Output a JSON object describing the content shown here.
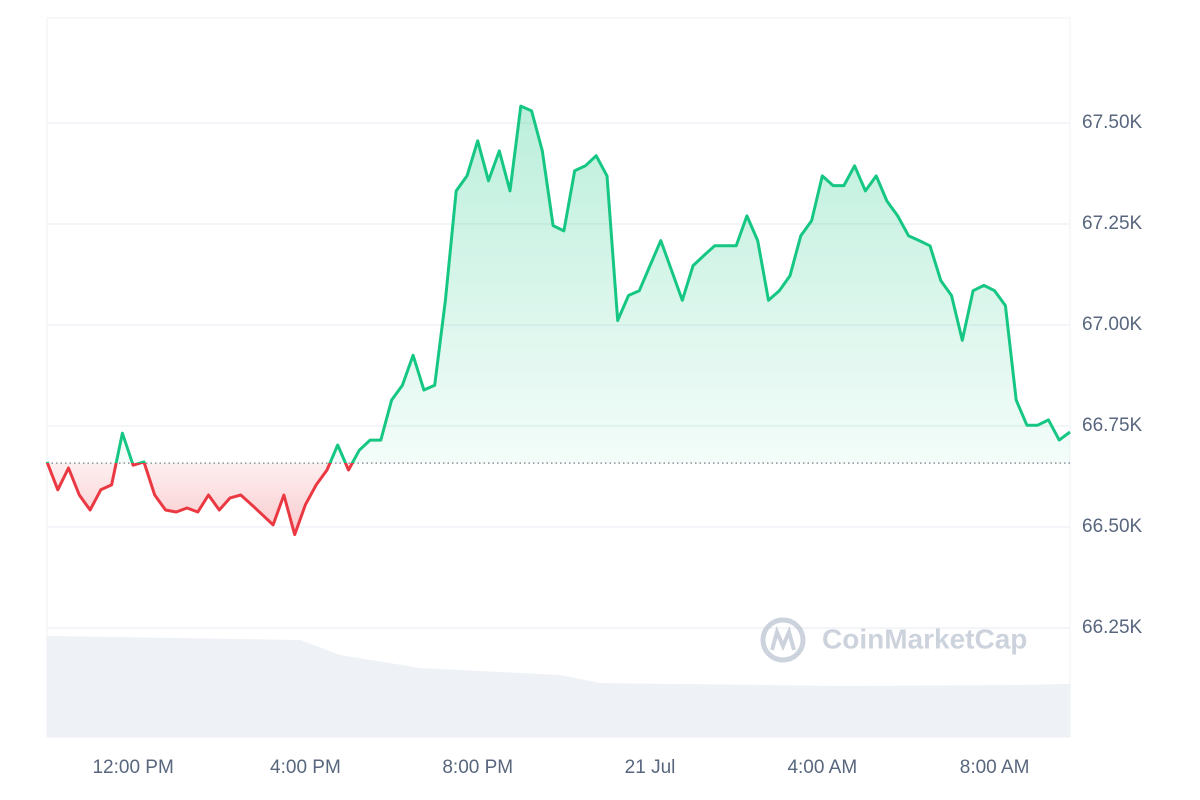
{
  "chart_data": {
    "type": "line",
    "categories": [
      null,
      null,
      null,
      null,
      null,
      null,
      null,
      null,
      "12:00 PM",
      null,
      null,
      null,
      null,
      null,
      null,
      null,
      null,
      null,
      null,
      null,
      null,
      null,
      null,
      null,
      "4:00 PM",
      null,
      null,
      null,
      null,
      null,
      null,
      null,
      null,
      null,
      null,
      null,
      null,
      null,
      null,
      null,
      "8:00 PM",
      null,
      null,
      null,
      null,
      null,
      null,
      null,
      null,
      null,
      null,
      null,
      null,
      null,
      null,
      null,
      "21 Jul",
      null,
      null,
      null,
      null,
      null,
      null,
      null,
      null,
      null,
      null,
      null,
      null,
      null,
      null,
      null,
      "4:00 AM",
      null,
      null,
      null,
      null,
      null,
      null,
      null,
      null,
      null,
      null,
      null,
      null,
      null,
      null,
      null,
      "8:00 AM",
      null,
      null,
      null,
      null,
      null,
      null,
      null
    ],
    "values": [
      66661,
      66592,
      66646,
      66579,
      66542,
      66592,
      66604,
      66732,
      66653,
      66661,
      66579,
      66542,
      66537,
      66547,
      66537,
      66579,
      66542,
      66572,
      66579,
      66555,
      66530,
      66505,
      66579,
      66481,
      66555,
      66604,
      66641,
      66703,
      66641,
      66690,
      66715,
      66715,
      66814,
      66851,
      66925,
      66839,
      66851,
      67061,
      67332,
      67369,
      67456,
      67357,
      67431,
      67332,
      67542,
      67530,
      67431,
      67246,
      67233,
      67382,
      67394,
      67419,
      67369,
      67011,
      67073,
      67085,
      67147,
      67209,
      67135,
      67061,
      67147,
      67172,
      67196,
      67196,
      67196,
      67270,
      67209,
      67061,
      67085,
      67122,
      67221,
      67258,
      67369,
      67345,
      67345,
      67394,
      67332,
      67369,
      67307,
      67270,
      67221,
      67209,
      67196,
      67110,
      67073,
      66962,
      67085,
      67098,
      67085,
      67048,
      66814,
      66752,
      66752,
      66765,
      66715,
      66735
    ],
    "color_up": "#16c784",
    "color_down": "#ea3943",
    "baseline": 66658,
    "ylim": [
      65980,
      67760
    ],
    "yticks": [
      {
        "value": 66250,
        "label": "66.25K"
      },
      {
        "value": 66500,
        "label": "66.50K"
      },
      {
        "value": 66750,
        "label": "66.75K"
      },
      {
        "value": 67000,
        "label": "67.00K"
      },
      {
        "value": 67250,
        "label": "67.25K"
      },
      {
        "value": 67500,
        "label": "67.50K"
      }
    ],
    "grid": true,
    "watermark": "CoinMarketCap"
  }
}
